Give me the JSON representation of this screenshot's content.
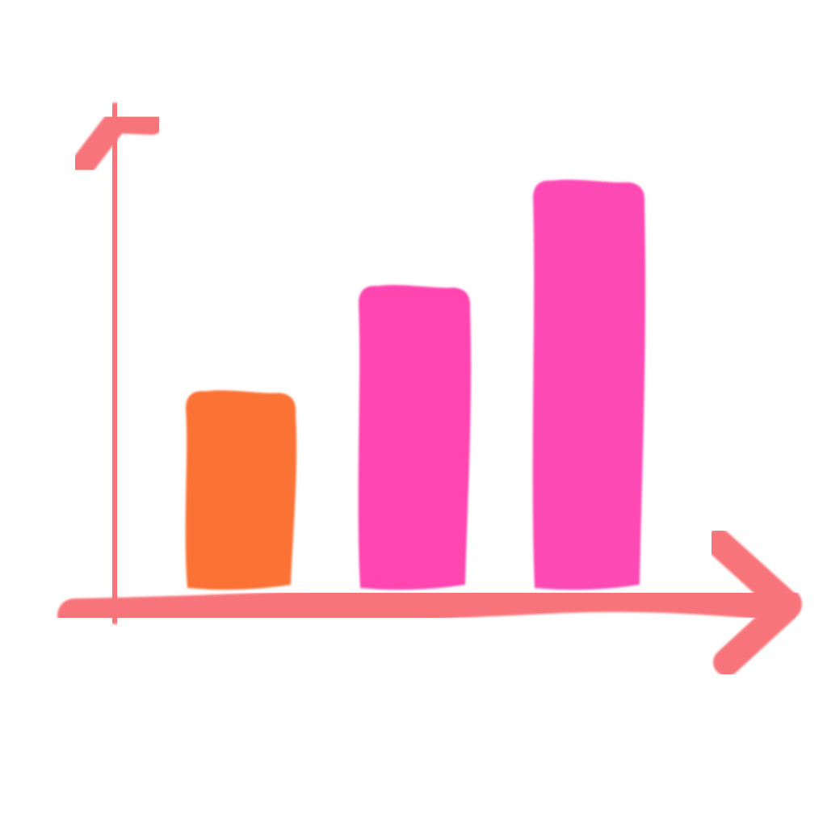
{
  "chart_data": {
    "type": "bar",
    "categories": [
      "",
      "",
      ""
    ],
    "values": [
      50,
      77,
      104
    ],
    "ylim": [
      0,
      130
    ],
    "grid": false,
    "legend": "none",
    "colors": {
      "axes": "#f7757a",
      "bars": [
        "#fb7236",
        "#fe44b0",
        "#fd4ab4"
      ]
    }
  }
}
